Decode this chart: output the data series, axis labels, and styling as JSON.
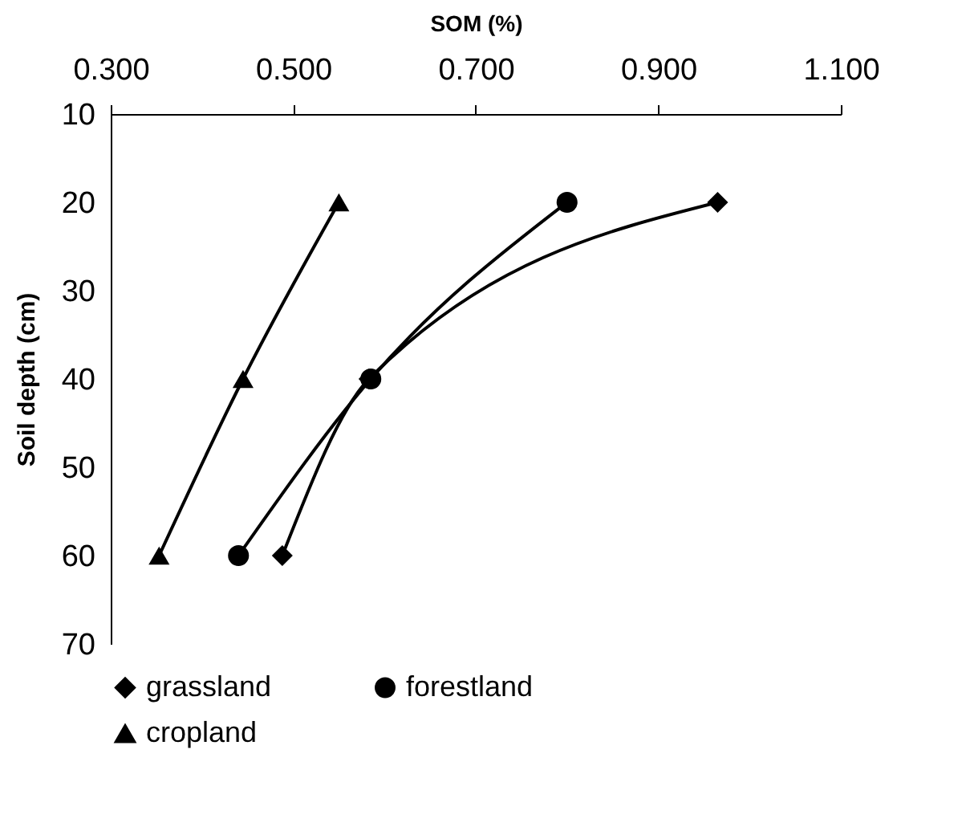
{
  "chart_data": {
    "type": "line",
    "xlabel": "SOM (%)",
    "ylabel": "Soil depth (cm)",
    "xlim": [
      0.3,
      1.1
    ],
    "xticks": [
      {
        "value": 0.3,
        "label": "0.300"
      },
      {
        "value": 0.5,
        "label": "0.500"
      },
      {
        "value": 0.7,
        "label": "0.700"
      },
      {
        "value": 0.9,
        "label": "0.900"
      },
      {
        "value": 1.1,
        "label": "1.100"
      }
    ],
    "ylim": [
      70,
      10
    ],
    "yticks": [
      10,
      20,
      30,
      40,
      50,
      60,
      70
    ],
    "legend": "bottom",
    "series": [
      {
        "name": "grassland",
        "color": "#000000",
        "marker": "diamond",
        "x": [
          0.965,
          0.583,
          0.488
        ],
        "values": [
          20,
          40,
          60
        ]
      },
      {
        "name": "forestland",
        "color": "#000000",
        "marker": "circle",
        "x": [
          0.8,
          0.585,
          0.44
        ],
        "values": [
          20,
          40,
          60
        ]
      },
      {
        "name": "cropland",
        "color": "#000000",
        "marker": "triangle",
        "x": [
          0.55,
          0.445,
          0.353
        ],
        "values": [
          20,
          40,
          60
        ]
      }
    ]
  }
}
